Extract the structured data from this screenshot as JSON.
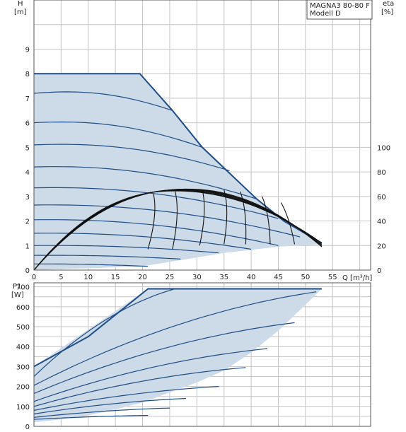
{
  "header": {
    "title": "MAGNA3 80-80 F",
    "subtitle": "Modell D"
  },
  "colors": {
    "envelope_fill": "#cddbe8",
    "curve_blue": "#1f4d86",
    "curve_black": "#111111",
    "grid": "#c4c4c4",
    "frame": "#555555"
  },
  "chart_data": [
    {
      "type": "line",
      "name": "head",
      "xlabel": "Q [m³/h]",
      "ylabel_line1": "H",
      "ylabel_line2": "[m]",
      "y2label_line1": "eta",
      "y2label_line2": "[%]",
      "xlim": [
        0,
        62
      ],
      "ylim": [
        0,
        11
      ],
      "y2lim": [
        0,
        220
      ],
      "x_ticks": [
        0,
        5,
        10,
        15,
        20,
        25,
        30,
        35,
        40,
        45,
        50,
        55
      ],
      "y_ticks": [
        0,
        1,
        2,
        3,
        4,
        5,
        6,
        7,
        8,
        9
      ],
      "y2_ticks": [
        0,
        20,
        40,
        60,
        80,
        100
      ],
      "grid": true,
      "envelope": [
        [
          0,
          8
        ],
        [
          19.5,
          8
        ],
        [
          25.5,
          6.5
        ],
        [
          31,
          5
        ],
        [
          41,
          2.9
        ],
        [
          46,
          2.0
        ],
        [
          53,
          1.05
        ],
        [
          45,
          0.95
        ],
        [
          35,
          0.7
        ],
        [
          20,
          0.15
        ],
        [
          0,
          0
        ]
      ],
      "max_curve": [
        [
          0,
          8
        ],
        [
          19.5,
          8
        ],
        [
          25.5,
          6.5
        ],
        [
          31,
          5
        ],
        [
          41,
          2.9
        ],
        [
          46,
          2.0
        ],
        [
          53,
          1.1
        ]
      ],
      "head_curves": [
        {
          "level": 7.2,
          "q_end": 25.5,
          "h_end": 6.5
        },
        {
          "level": 6.0,
          "q_end": 31,
          "h_end": 5.0
        },
        {
          "level": 5.1,
          "q_end": 36,
          "h_end": 4.05
        },
        {
          "level": 4.2,
          "q_end": 41,
          "h_end": 2.9
        },
        {
          "level": 3.35,
          "q_end": 45,
          "h_end": 2.1
        },
        {
          "level": 2.65,
          "q_end": 49,
          "h_end": 1.35
        },
        {
          "level": 2.05,
          "q_end": 45,
          "h_end": 1.0
        },
        {
          "level": 1.5,
          "q_end": 40,
          "h_end": 0.85
        },
        {
          "level": 1.0,
          "q_end": 34,
          "h_end": 0.7
        },
        {
          "level": 0.6,
          "q_end": 27,
          "h_end": 0.45
        },
        {
          "level": 0.25,
          "q_end": 21,
          "h_end": 0.15
        }
      ],
      "efficiency_curves": [
        {
          "q_peak": 26.0,
          "eta_peak": 64.5,
          "q_end": 53,
          "eta_end": 22
        },
        {
          "q_peak": 26.5,
          "eta_peak": 64.8,
          "q_end": 53,
          "eta_end": 21
        },
        {
          "q_peak": 27.0,
          "eta_peak": 65.2,
          "q_end": 53,
          "eta_end": 20
        },
        {
          "q_peak": 27.5,
          "eta_peak": 65.5,
          "q_end": 53,
          "eta_end": 20
        },
        {
          "q_peak": 28.0,
          "eta_peak": 65.8,
          "q_end": 53,
          "eta_end": 19
        },
        {
          "q_peak": 28.5,
          "eta_peak": 66.0,
          "q_end": 53,
          "eta_end": 19
        }
      ],
      "efficiency_drops": [
        {
          "q_start": 22,
          "eta_start": 62,
          "q_end": 21,
          "eta_end": 17
        },
        {
          "q_start": 26,
          "eta_start": 64,
          "q_end": 25.5,
          "eta_end": 17
        },
        {
          "q_start": 31,
          "eta_start": 65,
          "q_end": 30.5,
          "eta_end": 20
        },
        {
          "q_start": 35,
          "eta_start": 65.5,
          "q_end": 35,
          "eta_end": 21
        },
        {
          "q_start": 38,
          "eta_start": 64,
          "q_end": 39,
          "eta_end": 21
        },
        {
          "q_start": 42,
          "eta_start": 60,
          "q_end": 43.5,
          "eta_end": 21
        },
        {
          "q_start": 45.5,
          "eta_start": 55,
          "q_end": 48,
          "eta_end": 21
        }
      ]
    },
    {
      "type": "line",
      "name": "power",
      "ylabel_line1": "P1",
      "ylabel_line2": "[W]",
      "xlim": [
        0,
        62
      ],
      "ylim": [
        0,
        720
      ],
      "y_ticks": [
        0,
        100,
        200,
        300,
        400,
        500,
        600,
        700
      ],
      "grid": true,
      "envelope": [
        [
          0,
          300
        ],
        [
          21,
          690
        ],
        [
          53,
          690
        ],
        [
          50,
          610
        ],
        [
          45,
          480
        ],
        [
          40,
          370
        ],
        [
          35,
          280
        ],
        [
          30,
          220
        ],
        [
          25,
          170
        ],
        [
          20,
          120
        ],
        [
          15,
          85
        ],
        [
          10,
          55
        ],
        [
          5,
          35
        ],
        [
          0,
          20
        ]
      ],
      "max_curve": [
        [
          0,
          300
        ],
        [
          10,
          450
        ],
        [
          21,
          690
        ],
        [
          53,
          690
        ]
      ],
      "power_curves": [
        {
          "p0": 250,
          "q_end": 26,
          "p_end": 690
        },
        {
          "p0": 205,
          "q_end": 52,
          "p_end": 675
        },
        {
          "p0": 165,
          "q_end": 48,
          "p_end": 520
        },
        {
          "p0": 125,
          "q_end": 43,
          "p_end": 390
        },
        {
          "p0": 100,
          "q_end": 39,
          "p_end": 295
        },
        {
          "p0": 80,
          "q_end": 34,
          "p_end": 200
        },
        {
          "p0": 62,
          "q_end": 28,
          "p_end": 140
        },
        {
          "p0": 45,
          "q_end": 25,
          "p_end": 92
        },
        {
          "p0": 35,
          "q_end": 21,
          "p_end": 55
        }
      ]
    }
  ]
}
